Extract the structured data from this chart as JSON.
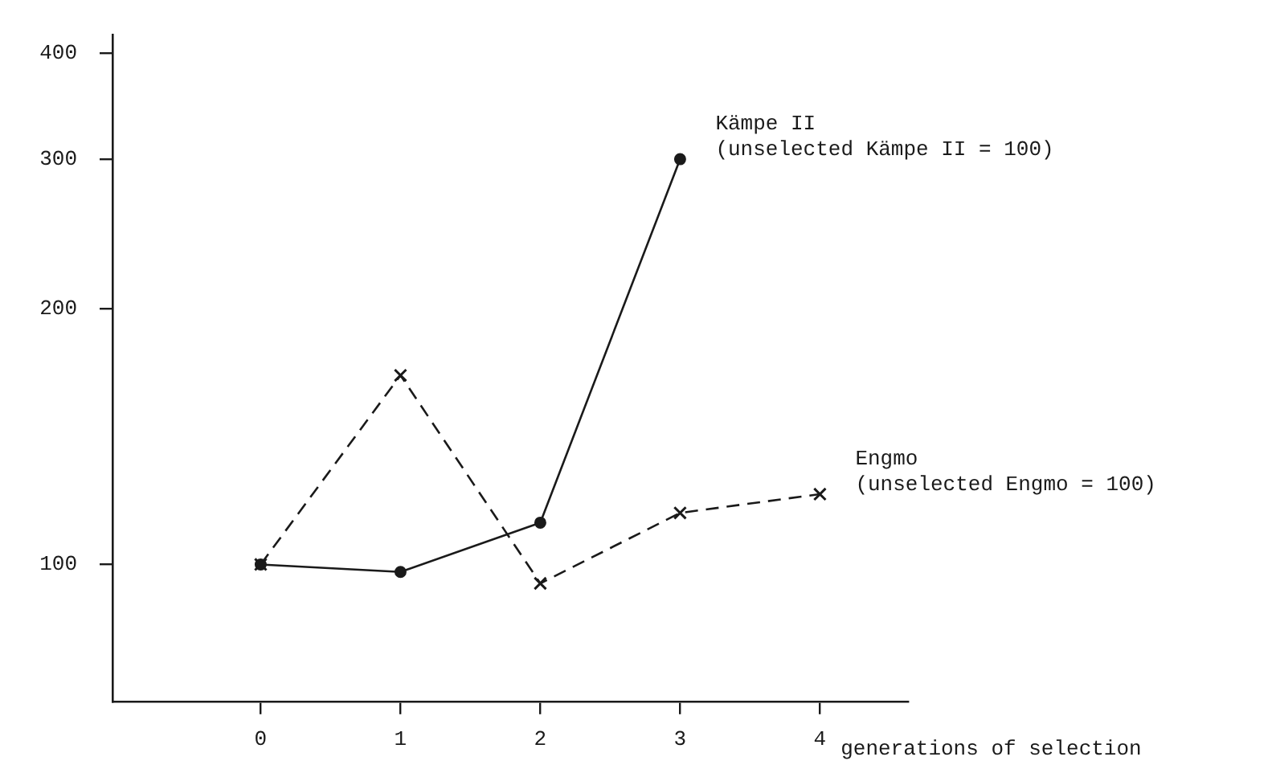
{
  "chart_data": {
    "type": "line",
    "xlabel": "generations of selection",
    "xlim": [
      -1.06,
      4.63
    ],
    "xticks": [
      0,
      1,
      2,
      3,
      4
    ],
    "ylim": [
      69,
      420
    ],
    "yticks": [
      100,
      200,
      300,
      400
    ],
    "log": "y",
    "grid": false,
    "legend": false,
    "series": [
      {
        "name": "Kämpe II",
        "color": "#1a1a1a",
        "marker": "circle",
        "line_style": "solid",
        "x": [
          0,
          1,
          2,
          3
        ],
        "values": [
          100,
          98,
          112,
          300
        ]
      },
      {
        "name": "Engmo",
        "color": "#1a1a1a",
        "marker": "cross",
        "line_style": "dashed",
        "x": [
          0,
          1,
          2,
          3,
          4
        ],
        "values": [
          100,
          167,
          95,
          115,
          121
        ]
      }
    ],
    "annotations": [
      "(unselected Kämpe II = 100)",
      "(unselected Engmo = 100)"
    ]
  }
}
